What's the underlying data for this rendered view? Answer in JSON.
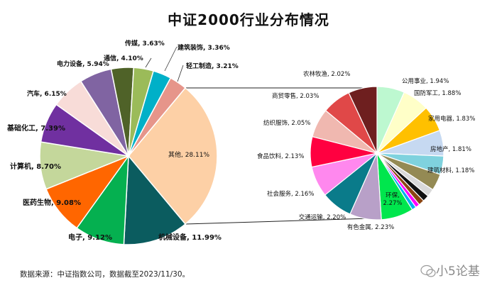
{
  "chart_data": {
    "type": "pie",
    "title": "中证2000行业分布情况",
    "source": "数据来源：中证指数公司，数据截至2023/11/30。",
    "main_pie": {
      "slices": [
        {
          "label": "其他, 28.11%",
          "value": 28.11,
          "color": "#FDD0A6"
        },
        {
          "label": "机械设备, 11.99%",
          "value": 11.99,
          "color": "#0B5C5F"
        },
        {
          "label": "电子, 9.12%",
          "value": 9.12,
          "color": "#05B050"
        },
        {
          "label": "医药生物, 9.08%",
          "value": 9.08,
          "color": "#FF6600"
        },
        {
          "label": "计算机, 8.70%",
          "value": 8.7,
          "color": "#C4D79B"
        },
        {
          "label": "基础化工, 7.39%",
          "value": 7.39,
          "color": "#7030A0"
        },
        {
          "label": "汽车, 6.15%",
          "value": 6.15,
          "color": "#F8DCD8"
        },
        {
          "label": "电力设备, 5.94%",
          "value": 5.94,
          "color": "#8064A2"
        },
        {
          "label": "通信, 4.10%",
          "value": 4.1,
          "color": "#4F6228"
        },
        {
          "label": "传媒, 3.63%",
          "value": 3.63,
          "color": "#9BBB59"
        },
        {
          "label": "建筑装饰, 3.36%",
          "value": 3.36,
          "color": "#00B0C8"
        },
        {
          "label": "轻工制造, 3.21%",
          "value": 3.21,
          "color": "#E6958A"
        }
      ]
    },
    "sub_pie": {
      "slices": [
        {
          "label": "公用事业, 1.94%",
          "value": 1.94,
          "color": "#BDF8D0"
        },
        {
          "label": "国防军工, 1.88%",
          "value": 1.88,
          "color": "#FFFFC8"
        },
        {
          "label": "家用电器, 1.83%",
          "value": 1.83,
          "color": "#FFC000"
        },
        {
          "label": "房地产, 1.81%",
          "value": 1.81,
          "color": "#C6D9F1"
        },
        {
          "label": "",
          "value": 1.3,
          "color": "#7FD2DE"
        },
        {
          "label": "建筑材料, 1.18%",
          "value": 1.18,
          "color": "#948A54"
        },
        {
          "label": "",
          "value": 0.55,
          "color": "#D9D9D9"
        },
        {
          "label": "",
          "value": 0.45,
          "color": "#111111"
        },
        {
          "label": "",
          "value": 0.4,
          "color": "#8B4513"
        },
        {
          "label": "",
          "value": 0.3,
          "color": "#FF00FF"
        },
        {
          "label": "",
          "value": 0.3,
          "color": "#00B0F0"
        },
        {
          "label": "环保, 2.27%",
          "value": 2.27,
          "color": "#00E64D"
        },
        {
          "label": "有色金属, 2.23%",
          "value": 2.23,
          "color": "#B8A0C8"
        },
        {
          "label": "交通运输, 2.20%",
          "value": 2.2,
          "color": "#0A7B8A"
        },
        {
          "label": "社会服务, 2.16%",
          "value": 2.16,
          "color": "#FF88EE"
        },
        {
          "label": "食品饮料, 2.13%",
          "value": 2.13,
          "color": "#FF0040"
        },
        {
          "label": "纺织服饰, 2.05%",
          "value": 2.05,
          "color": "#F0B8B0"
        },
        {
          "label": "商贸零售, 2.03%",
          "value": 2.03,
          "color": "#E04848"
        },
        {
          "label": "农林牧渔, 2.02%",
          "value": 2.02,
          "color": "#6E1F1F"
        }
      ]
    }
  },
  "watermark": "小5论基"
}
